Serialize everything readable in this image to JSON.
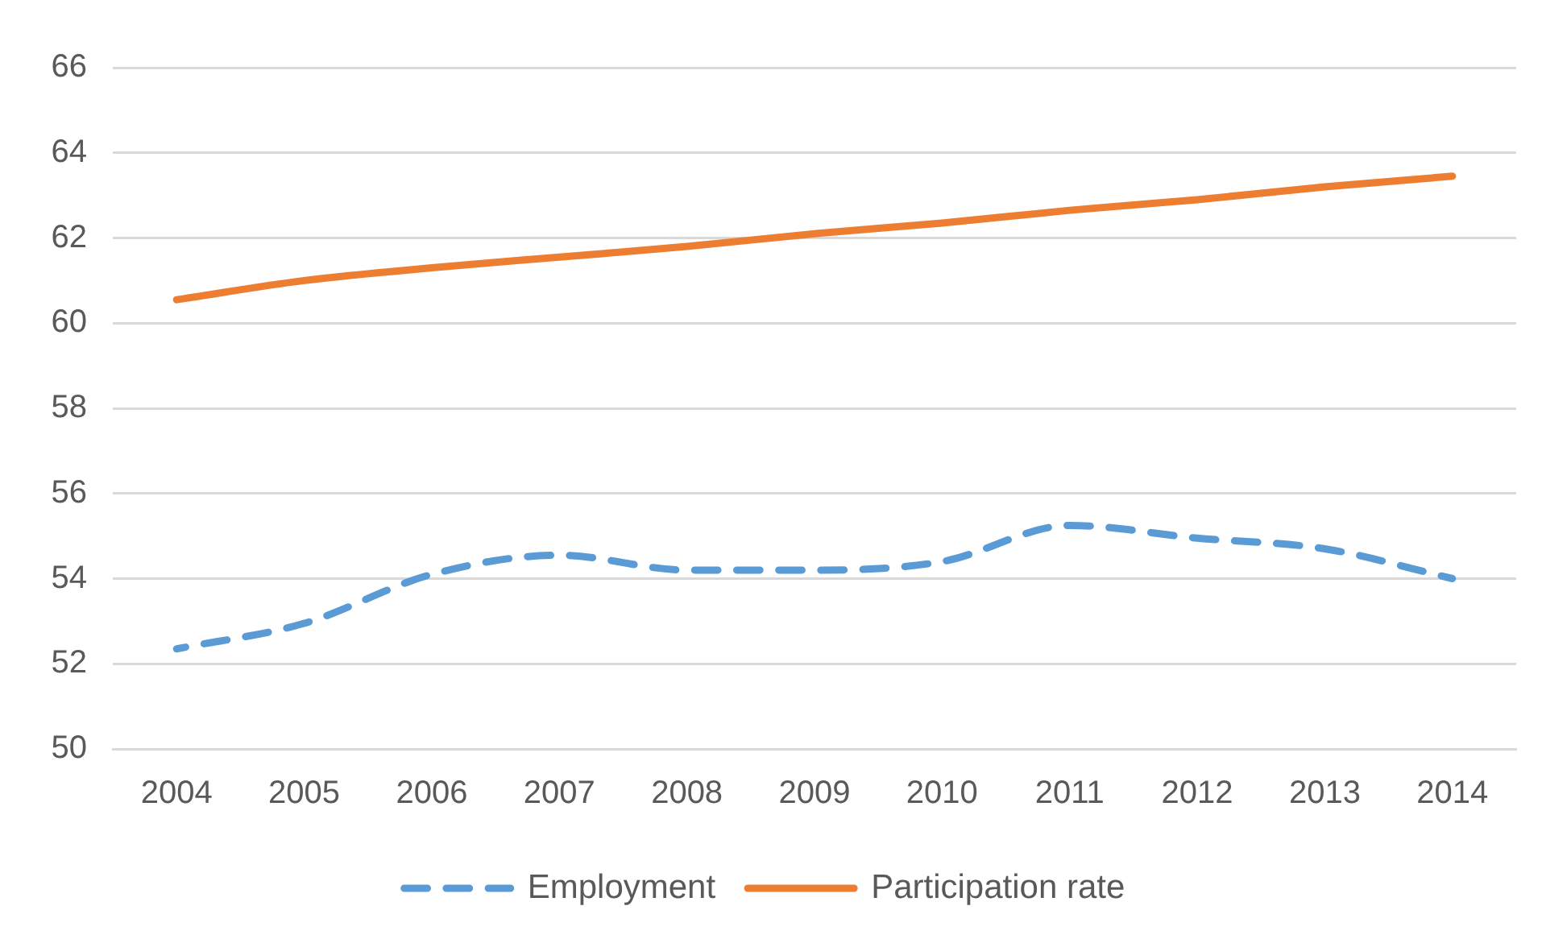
{
  "chart_data": {
    "type": "line",
    "categories": [
      "2004",
      "2005",
      "2006",
      "2007",
      "2008",
      "2009",
      "2010",
      "2011",
      "2012",
      "2013",
      "2014"
    ],
    "series": [
      {
        "name": "Employment",
        "color": "#5b9bd5",
        "line_style": "dashed",
        "values": [
          52.35,
          52.95,
          54.1,
          54.55,
          54.2,
          54.2,
          54.4,
          55.25,
          54.95,
          54.7,
          54.0
        ]
      },
      {
        "name": "Participation rate",
        "color": "#ed7d31",
        "line_style": "solid",
        "values": [
          60.55,
          61.0,
          61.3,
          61.55,
          61.8,
          62.1,
          62.35,
          62.65,
          62.9,
          63.2,
          63.45
        ]
      }
    ],
    "ylim": [
      50,
      66
    ],
    "yticks": [
      50,
      52,
      54,
      56,
      58,
      60,
      62,
      64,
      66
    ],
    "grid": "y",
    "legend": "bottom",
    "marker": "none"
  }
}
